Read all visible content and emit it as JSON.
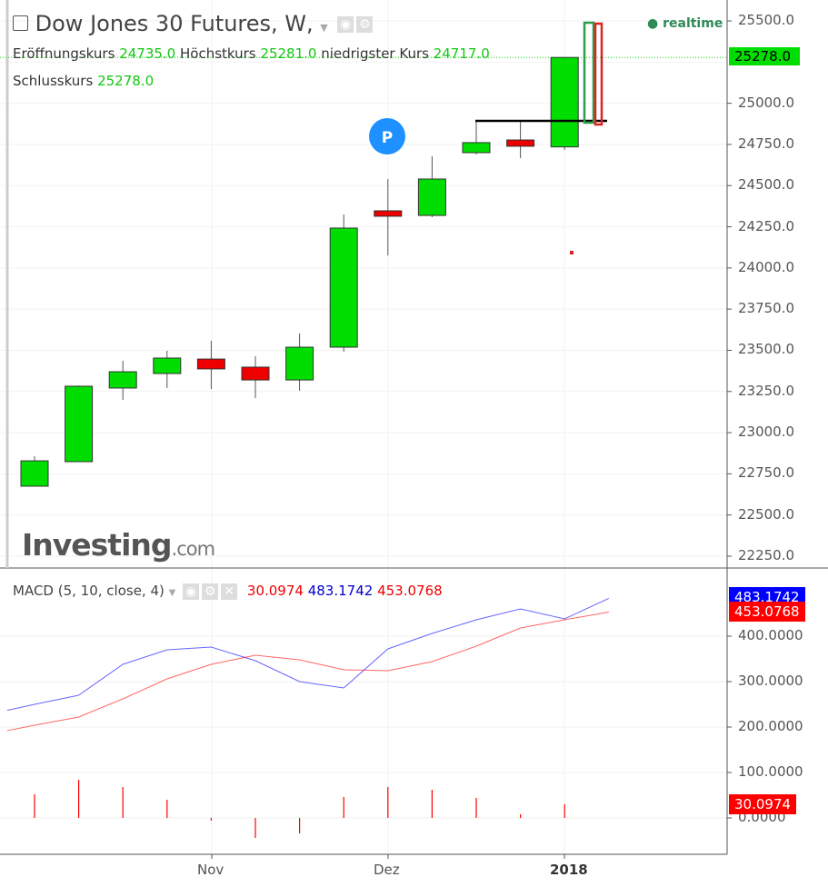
{
  "header": {
    "title": "Dow Jones 30 Futures, W,",
    "open_label": "Eröffnungskurs",
    "open": "24735.0",
    "high_label": "Höchstkurs",
    "high": "25281.0",
    "low_label": "niedrigster Kurs",
    "low": "24717.0",
    "close_label": "Schlusskurs",
    "close": "25278.0",
    "realtime": "realtime"
  },
  "logo": {
    "brand": "Investing",
    "suffix": ".com"
  },
  "colors": {
    "up": "#00dd00",
    "down": "#ee0000",
    "macd": "#0000ff",
    "signal": "#ff0000",
    "last_price": "#00dd00"
  },
  "chart_data": [
    {
      "type": "candlestick",
      "title": "Dow Jones 30 Futures, W,",
      "ylim": [
        22150,
        25600
      ],
      "yticks": [
        "25500.0",
        "25000.0",
        "24750.0",
        "24500.0",
        "24250.0",
        "24000.0",
        "23750.0",
        "23500.0",
        "23250.0",
        "23000.0",
        "22750.0",
        "22500.0",
        "22250.0"
      ],
      "last_price_label": "25278.0",
      "candles": [
        {
          "o": 22675,
          "h": 22857,
          "l": 22675,
          "c": 22829
        },
        {
          "o": 22824,
          "h": 23287,
          "l": 22824,
          "c": 23282
        },
        {
          "o": 23271,
          "h": 23436,
          "l": 23199,
          "c": 23370
        },
        {
          "o": 23359,
          "h": 23497,
          "l": 23271,
          "c": 23453
        },
        {
          "o": 23447,
          "h": 23558,
          "l": 23265,
          "c": 23387
        },
        {
          "o": 23398,
          "h": 23464,
          "l": 23210,
          "c": 23320
        },
        {
          "o": 23320,
          "h": 23602,
          "l": 23254,
          "c": 23519
        },
        {
          "o": 23519,
          "h": 24325,
          "l": 23491,
          "c": 24242
        },
        {
          "o": 24347,
          "h": 24540,
          "l": 24076,
          "c": 24314
        },
        {
          "o": 24319,
          "h": 24678,
          "l": 24308,
          "c": 24540
        },
        {
          "o": 24700,
          "h": 24893,
          "l": 24689,
          "c": 24761
        },
        {
          "o": 24777,
          "h": 24893,
          "l": 24667,
          "c": 24739
        },
        {
          "o": 24735,
          "h": 25281,
          "l": 24717,
          "c": 25278
        }
      ],
      "level_line": 24893,
      "marker": "P"
    },
    {
      "type": "line",
      "title": "MACD (5, 10, close, 4)",
      "ylim": [
        -90,
        560
      ],
      "yticks": [
        "400.0000",
        "300.0000",
        "200.0000",
        "100.0000",
        "0.0000"
      ],
      "xticks": [
        "Nov",
        "Dez",
        "2018"
      ],
      "values_label": {
        "hist": "30.0974",
        "macd": "483.1742",
        "signal": "453.0768"
      },
      "macd": [
        250,
        270,
        338,
        370,
        376,
        346,
        300,
        286,
        372,
        406,
        436,
        460,
        438,
        483.17
      ],
      "signal": [
        204,
        222,
        262,
        306,
        338,
        358,
        348,
        326,
        324,
        344,
        378,
        418,
        436,
        453.08
      ],
      "histogram": [
        52,
        84,
        68,
        40,
        -6,
        -44,
        -34,
        46,
        68,
        62,
        44,
        8,
        30.1
      ]
    }
  ]
}
